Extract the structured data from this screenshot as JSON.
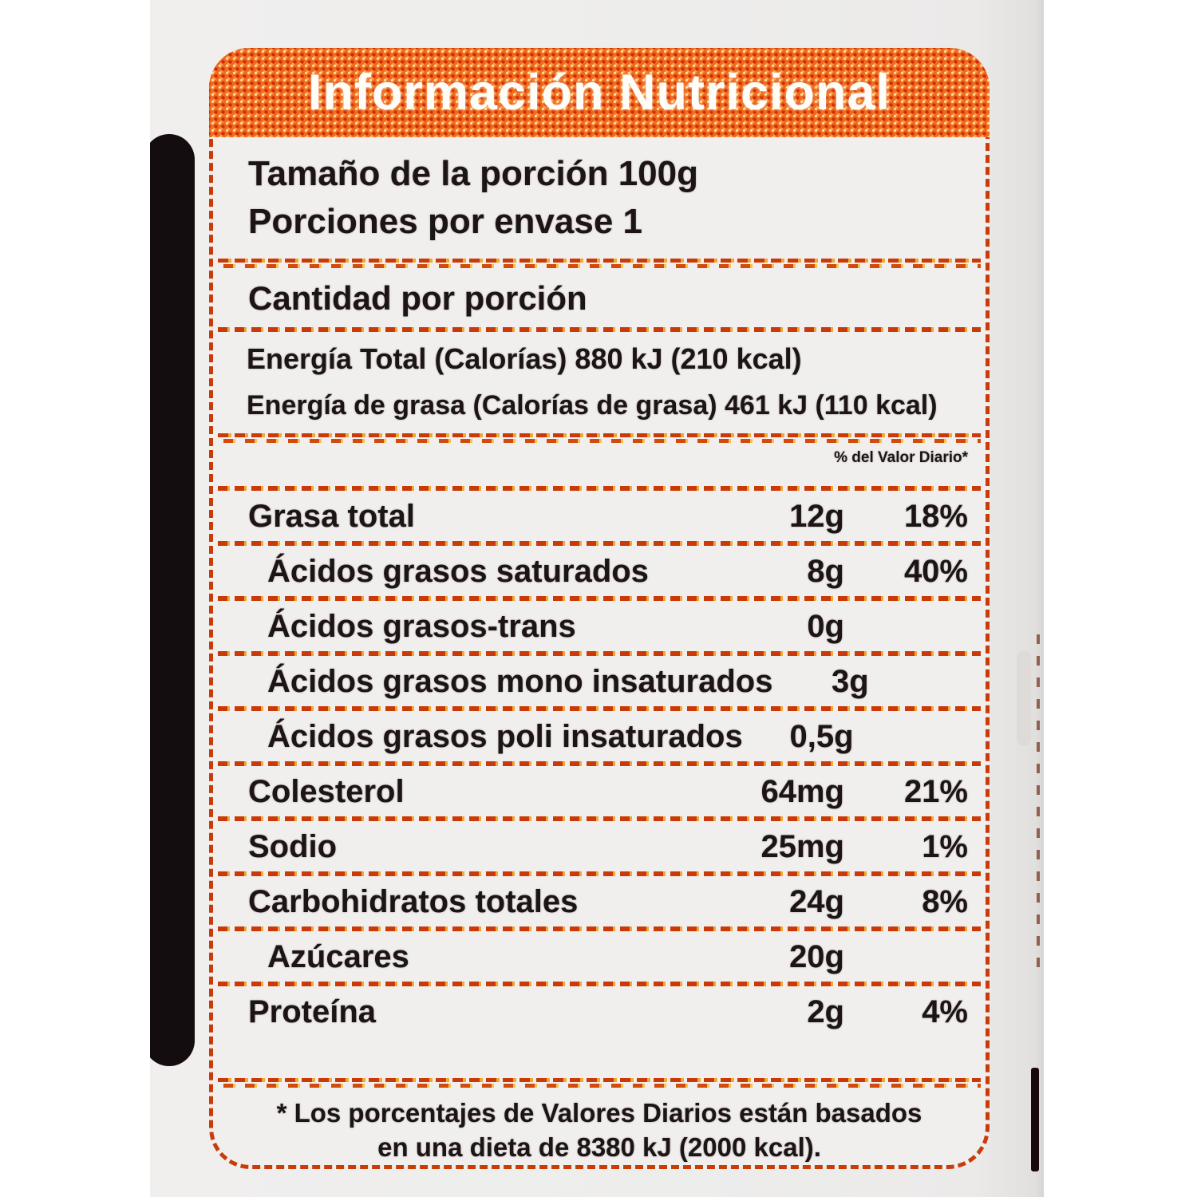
{
  "header": {
    "title": "Información Nutricional"
  },
  "serving": {
    "size_line": "Tamaño de la porción 100g",
    "per_container_line": "Porciones por envase 1"
  },
  "amount_heading": "Cantidad por porción",
  "energy": {
    "total_line": "Energía Total (Calorías) 880 kJ (210 kcal)",
    "fat_line": "Energía de grasa (Calorías de grasa) 461 kJ (110 kcal)"
  },
  "dv_column_note": "% del Valor Diario*",
  "nutrients": [
    {
      "name": "Grasa total",
      "amount": "12g",
      "dv": "18%"
    },
    {
      "name": "Ácidos grasos saturados",
      "amount": "8g",
      "dv": "40%"
    },
    {
      "name": "Ácidos grasos-trans",
      "amount": "0g",
      "dv": ""
    },
    {
      "name": "Ácidos grasos mono insaturados",
      "amount": "3g",
      "dv": ""
    },
    {
      "name": "Ácidos grasos poli insaturados",
      "amount": "0,5g",
      "dv": ""
    },
    {
      "name": "Colesterol",
      "amount": "64mg",
      "dv": "21%"
    },
    {
      "name": "Sodio",
      "amount": "25mg",
      "dv": "1%"
    },
    {
      "name": "Carbohidratos totales",
      "amount": "24g",
      "dv": "8%"
    },
    {
      "name": "Azúcares",
      "amount": "20g",
      "dv": ""
    },
    {
      "name": "Proteína",
      "amount": "2g",
      "dv": "4%"
    }
  ],
  "footnote": {
    "line1": "* Los porcentajes de Valores Diarios están basados",
    "line2": "en una dieta de 8380 kJ (2000 kcal)."
  },
  "colors": {
    "header_halftone_orange": "#ee6a1e",
    "dash_red": "#c93c0a",
    "dash_yellow": "#f0a832",
    "text_black": "#1d1416",
    "package_gray": "#ededec",
    "header_text": "#ffffff"
  }
}
